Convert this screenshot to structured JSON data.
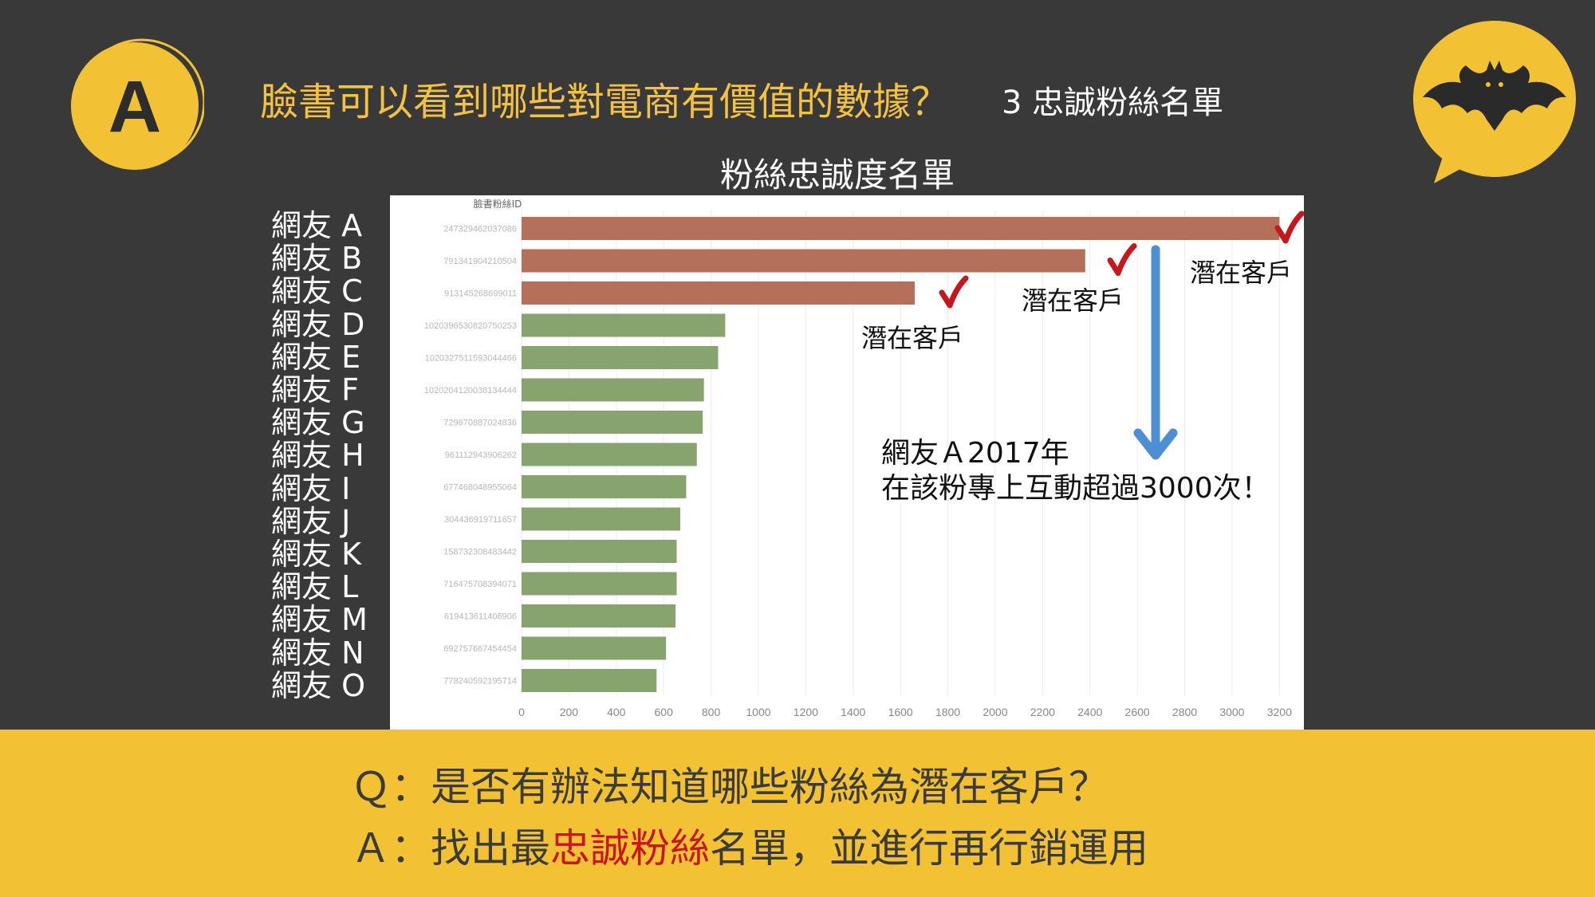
{
  "header": {
    "title": "臉書可以看到哪些對電商有價值的數據？",
    "subtitle": "3 忠誠粉絲名單",
    "badge_letter": "A"
  },
  "chart_data": {
    "type": "bar",
    "orientation": "horizontal",
    "title": "粉絲忠誠度名單",
    "id_header": "臉書粉絲ID",
    "categories": [
      "網友 A",
      "網友 B",
      "網友 C",
      "網友 D",
      "網友 E",
      "網友 F",
      "網友 G",
      "網友 H",
      "網友 I",
      "網友 J",
      "網友 K",
      "網友 L",
      "網友 M",
      "網友 N",
      "網友 O"
    ],
    "ids": [
      "247329462037086",
      "791341904210504",
      "913145268699011",
      "1020396530820750253",
      "1020327511593044466",
      "1020204120038134444",
      "729670887024836",
      "961112943906262",
      "677468048955064",
      "304436919711657",
      "158732308483442",
      "716475708394071",
      "619413611406906",
      "692757667454454",
      "778240592195714"
    ],
    "values": [
      3200,
      2380,
      1660,
      860,
      830,
      770,
      765,
      740,
      695,
      670,
      655,
      655,
      650,
      610,
      570
    ],
    "highlight_count": 3,
    "colors": {
      "highlight": "#b5705a",
      "normal": "#87a46f",
      "check": "#c8161d",
      "arrow": "#4c8fd5"
    },
    "xlim": [
      0,
      3300
    ],
    "xticks": [
      0,
      200,
      400,
      600,
      800,
      1000,
      1200,
      1400,
      1600,
      1800,
      2000,
      2200,
      2400,
      2600,
      2800,
      3000,
      3200
    ],
    "grid": true,
    "annotations": {
      "potential_customer": "潛在客戶"
    },
    "note": [
      "網友Ａ2017年",
      "在該粉專上互動超過3000次！"
    ]
  },
  "bottom": {
    "q": "Ｑ：是否有辦法知道哪些粉絲為潛在客戶？",
    "a_prefix": "Ａ：找出最",
    "a_highlight": "忠誠粉絲",
    "a_suffix": "名單，並進行再行銷運用"
  },
  "icons": {
    "badge": "letter-a-circle-icon",
    "mascot": "bat-speech-bubble-icon"
  }
}
